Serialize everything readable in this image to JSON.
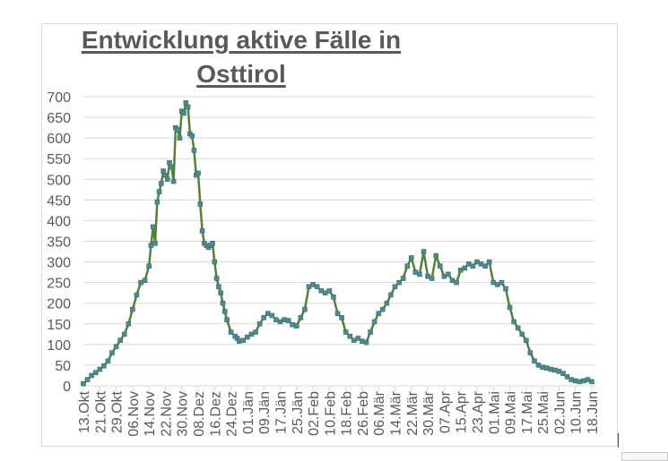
{
  "chart_data": {
    "type": "line",
    "title": "Entwicklung aktive Fälle in Osttirol",
    "title_lines": [
      "Entwicklung aktive Fälle in",
      "Osttirol"
    ],
    "xlabel": "",
    "ylabel": "",
    "ylim": [
      0,
      700
    ],
    "yticks": [
      0,
      50,
      100,
      150,
      200,
      250,
      300,
      350,
      400,
      450,
      500,
      550,
      600,
      650,
      700
    ],
    "grid": true,
    "legend": "none",
    "line_color": "#548235",
    "marker_color": "#4e8a8c",
    "x_tick_labels": [
      "13.Okt",
      "21.Okt",
      "29.Okt",
      "06.Nov",
      "14.Nov",
      "22.Nov",
      "30.Nov",
      "08.Dez",
      "16.Dez",
      "24.Dez",
      "01.Jän",
      "09.Jän",
      "17.Jän",
      "25.Jän",
      "02.Feb",
      "10.Feb",
      "18.Feb",
      "26.Feb",
      "06.Mär",
      "14.Mär",
      "22.Mär",
      "30.Mär",
      "07.Apr",
      "15.Apr",
      "23.Apr",
      "01.Mai",
      "09.Mai",
      "17.Mai",
      "25.Mai",
      "02.Jun",
      "10.Jun",
      "18.Jun"
    ],
    "x_tick_interval_days": 8,
    "series": [
      {
        "name": "Aktive Fälle",
        "day_offset_from_13_Okt": [
          0,
          2,
          4,
          6,
          8,
          10,
          12,
          14,
          16,
          18,
          20,
          22,
          24,
          26,
          28,
          30,
          32,
          33,
          34,
          35,
          36,
          37,
          38,
          39,
          40,
          41,
          42,
          43,
          44,
          45,
          46,
          47,
          48,
          49,
          50,
          51,
          52,
          53,
          54,
          55,
          56,
          57,
          58,
          59,
          60,
          61,
          62,
          63,
          64,
          65,
          66,
          67,
          68,
          69,
          70,
          72,
          74,
          75,
          76,
          78,
          80,
          82,
          84,
          86,
          88,
          90,
          92,
          94,
          96,
          98,
          100,
          102,
          104,
          106,
          108,
          110,
          112,
          114,
          116,
          118,
          120,
          122,
          124,
          126,
          128,
          130,
          132,
          134,
          136,
          138,
          140,
          142,
          144,
          146,
          148,
          150,
          152,
          154,
          156,
          158,
          160,
          162,
          164,
          166,
          168,
          170,
          172,
          174,
          176,
          178,
          180,
          182,
          184,
          186,
          188,
          190,
          192,
          194,
          196,
          198,
          200,
          202,
          204,
          206,
          208,
          210,
          212,
          214,
          216,
          218,
          220,
          222,
          224,
          226,
          228,
          230,
          232,
          234,
          236,
          238,
          240,
          242,
          244,
          246,
          248
        ],
        "values": [
          5,
          15,
          25,
          32,
          40,
          48,
          60,
          80,
          95,
          110,
          125,
          150,
          185,
          220,
          250,
          255,
          290,
          340,
          385,
          345,
          445,
          470,
          490,
          520,
          510,
          500,
          540,
          530,
          495,
          625,
          620,
          600,
          665,
          660,
          685,
          675,
          610,
          605,
          570,
          510,
          515,
          440,
          375,
          345,
          340,
          335,
          340,
          345,
          300,
          260,
          240,
          225,
          200,
          180,
          160,
          130,
          120,
          115,
          108,
          110,
          118,
          125,
          130,
          150,
          165,
          175,
          170,
          160,
          155,
          160,
          158,
          148,
          145,
          165,
          185,
          240,
          245,
          240,
          230,
          225,
          230,
          215,
          175,
          165,
          130,
          120,
          110,
          115,
          108,
          105,
          130,
          155,
          175,
          185,
          200,
          220,
          240,
          250,
          260,
          290,
          310,
          275,
          270,
          325,
          265,
          260,
          315,
          290,
          265,
          270,
          255,
          250,
          280,
          285,
          295,
          290,
          300,
          295,
          290,
          300,
          250,
          245,
          250,
          235,
          190,
          155,
          140,
          125,
          110,
          80,
          60,
          50,
          45,
          43,
          40,
          38,
          35,
          30,
          22,
          15,
          12,
          10,
          12,
          15,
          10
        ]
      }
    ]
  },
  "ui": {
    "paste_options_icon": "clipboard-icon"
  }
}
